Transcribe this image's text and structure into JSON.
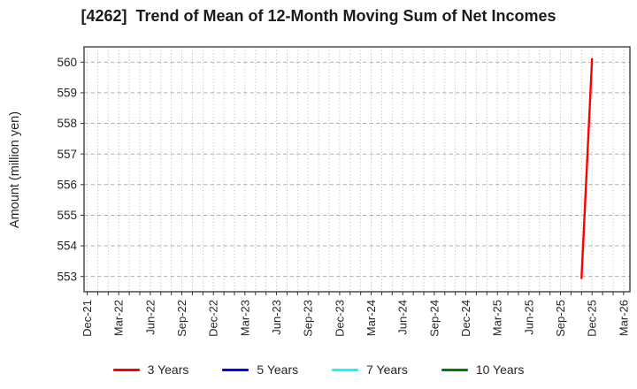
{
  "chart_data": {
    "type": "line",
    "title": "[4262]  Trend of Mean of 12-Month Moving Sum of Net Incomes",
    "ylabel": "Amount (million yen)",
    "ylim": [
      552.5,
      560.5
    ],
    "yticks": [
      553,
      554,
      555,
      556,
      557,
      558,
      559,
      560
    ],
    "x_tick_labels": [
      "Dec-21",
      "Mar-22",
      "Jun-22",
      "Sep-22",
      "Dec-22",
      "Mar-23",
      "Jun-23",
      "Sep-23",
      "Dec-23",
      "Mar-24",
      "Jun-24",
      "Sep-24",
      "Dec-24",
      "Mar-25",
      "Jun-25",
      "Sep-25",
      "Dec-25",
      "Mar-26"
    ],
    "xlim_months": [
      -0.3,
      51.6
    ],
    "x_minor_gridline_interval": "monthly",
    "grid": {
      "horizontal_style": "dashed",
      "vertical_style": "dotted",
      "gridline_color": "#b0b0b0"
    },
    "series": [
      {
        "name": "3 Years",
        "color": "#ff0000",
        "points": [
          {
            "month": "Nov-25",
            "value": 552.95
          },
          {
            "month": "Dec-25",
            "value": 560.1
          }
        ]
      },
      {
        "name": "5 Years",
        "color": "#0000ff",
        "points": []
      },
      {
        "name": "7 Years",
        "color": "#00ffff",
        "points": []
      },
      {
        "name": "10 Years",
        "color": "#008000",
        "points": []
      }
    ],
    "legend_position": "bottom"
  }
}
